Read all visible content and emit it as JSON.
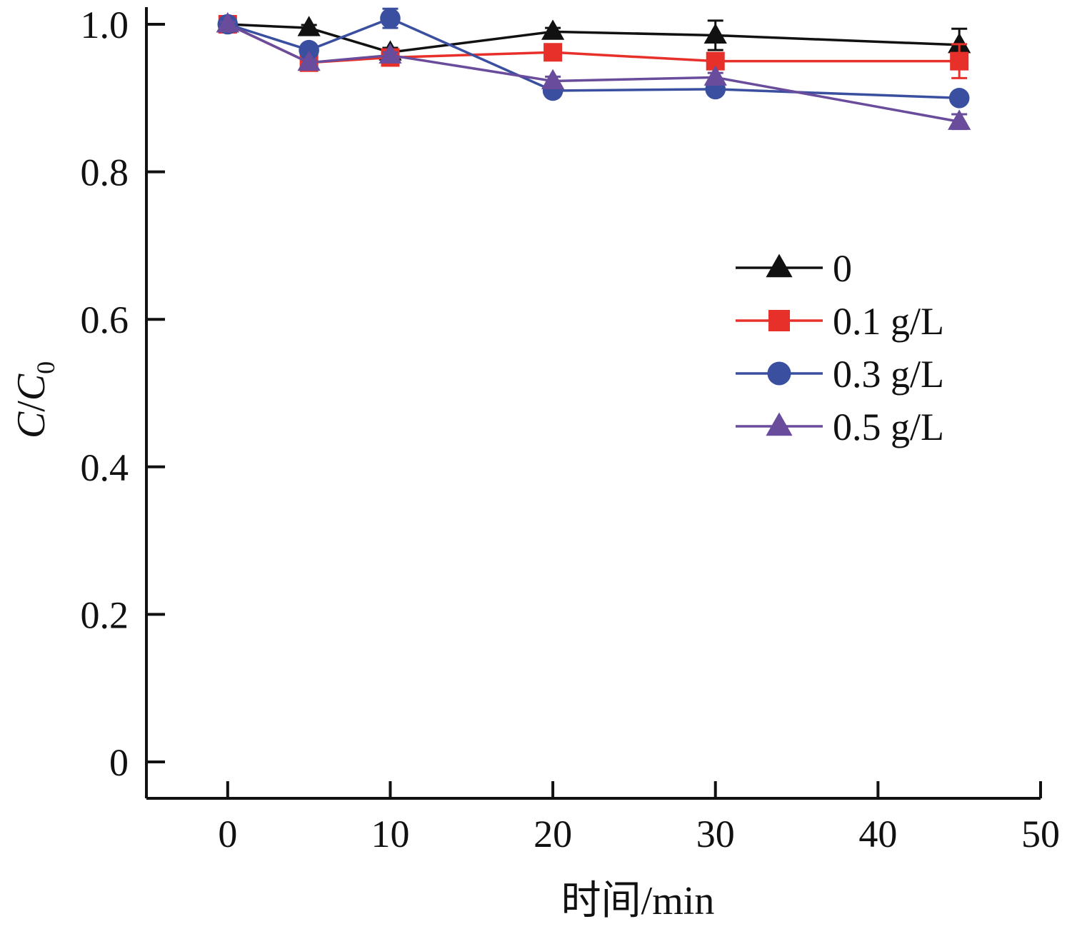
{
  "chart_data": {
    "type": "line",
    "xlabel": "时间/min",
    "ylabel_main": "C",
    "ylabel_sep": "/",
    "ylabel_sub_base": "C",
    "ylabel_sub": "0",
    "xlim": [
      -5,
      50
    ],
    "ylim": [
      0,
      1.0
    ],
    "x_ticks": [
      0,
      10,
      20,
      30,
      40,
      50
    ],
    "y_ticks": [
      0,
      0.2,
      0.4,
      0.6,
      0.8,
      1.0
    ],
    "x_tick_labels": [
      "0",
      "10",
      "20",
      "30",
      "40",
      "50"
    ],
    "y_tick_labels": [
      "0",
      "0.2",
      "0.4",
      "0.6",
      "0.8",
      "1.0"
    ],
    "legend_position": "center-right",
    "grid": false,
    "x": [
      0,
      5,
      10,
      20,
      30,
      45
    ],
    "series": [
      {
        "name": "0",
        "color": "#111111",
        "marker": "triangle",
        "values": [
          1.0,
          0.995,
          0.962,
          0.99,
          0.985,
          0.972
        ],
        "errors": [
          0.003,
          0.004,
          0.006,
          0.005,
          0.02,
          0.022
        ]
      },
      {
        "name": "0.1 g/L",
        "color": "#e8302a",
        "marker": "square",
        "values": [
          1.0,
          0.948,
          0.955,
          0.962,
          0.95,
          0.95
        ],
        "errors": [
          0.003,
          0.004,
          0.004,
          0.006,
          0.006,
          0.023
        ]
      },
      {
        "name": "0.3 g/L",
        "color": "#3a4fa0",
        "marker": "circle",
        "values": [
          1.0,
          0.965,
          1.008,
          0.91,
          0.912,
          0.9
        ],
        "errors": [
          0.003,
          0.005,
          0.013,
          0.004,
          0.005,
          0.005
        ]
      },
      {
        "name": "0.5 g/L",
        "color": "#6a4c9c",
        "marker": "triangle",
        "values": [
          1.0,
          0.948,
          0.958,
          0.923,
          0.928,
          0.868
        ],
        "errors": [
          0.003,
          0.004,
          0.004,
          0.006,
          0.006,
          0.01
        ]
      }
    ]
  }
}
